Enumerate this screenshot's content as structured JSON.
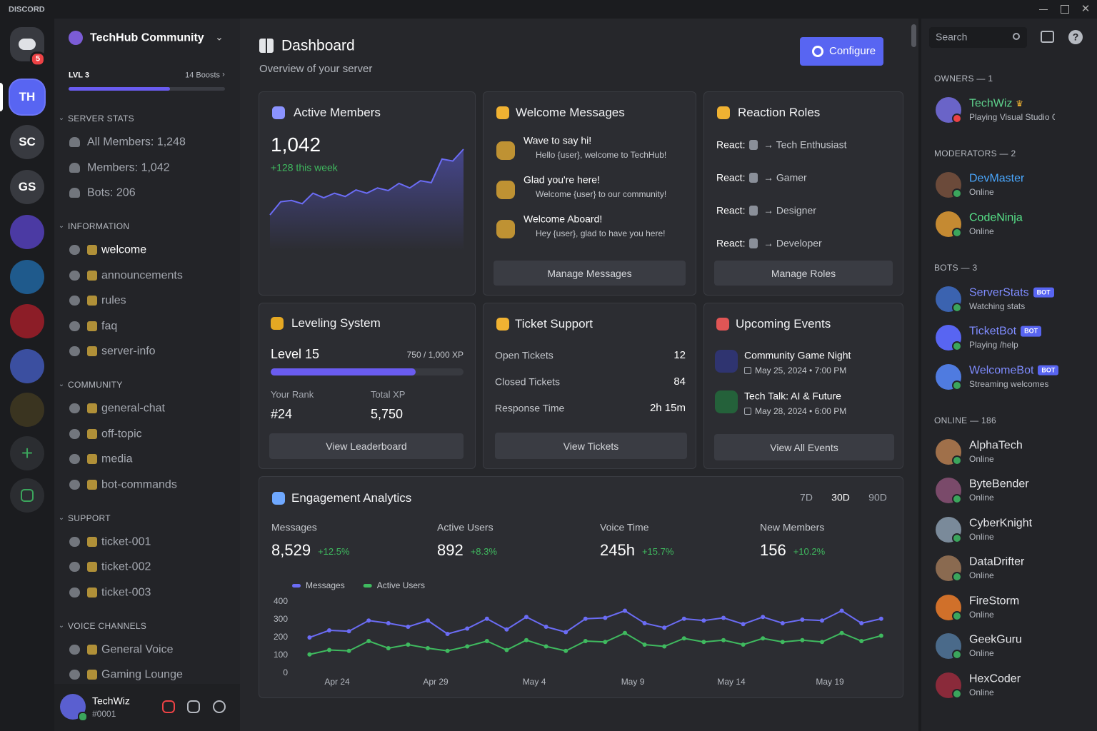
{
  "window": {
    "app": "DISCORD"
  },
  "servers": {
    "items": [
      "TH",
      "SC",
      "GS"
    ],
    "badge": "5"
  },
  "server": {
    "name": "TechHub Community",
    "level": "LVL 3",
    "boosts": "14 Boosts"
  },
  "channels": [
    {
      "name": "SERVER STATS",
      "items": [
        "All Members: 1,248",
        "Members: 1,042",
        "Bots: 206"
      ]
    },
    {
      "name": "INFORMATION",
      "items": [
        "welcome",
        "announcements",
        "rules",
        "faq",
        "server-info"
      ]
    },
    {
      "name": "COMMUNITY",
      "items": [
        "general-chat",
        "off-topic",
        "media",
        "bot-commands"
      ]
    },
    {
      "name": "SUPPORT",
      "items": [
        "ticket-001",
        "ticket-002",
        "ticket-003"
      ]
    },
    {
      "name": "VOICE CHANNELS",
      "items": [
        "General Voice",
        "Gaming Lounge"
      ]
    }
  ],
  "user": {
    "name": "TechWiz",
    "tag": "#0001"
  },
  "header": {
    "title": "Dashboard",
    "subtitle": "Overview of your server",
    "button": "Configure"
  },
  "active_members": {
    "title": "Active Members",
    "value": "1,042",
    "delta": "+128 this week",
    "trend": {
      "type": "area",
      "ylim": [
        0,
        100
      ],
      "values": [
        0,
        20,
        22,
        17,
        33,
        26,
        33,
        28,
        38,
        33,
        41,
        37,
        48,
        41,
        52,
        49,
        85,
        82,
        100
      ]
    }
  },
  "welcome": {
    "title": "Welcome Messages",
    "items": [
      {
        "title": "Wave to say hi!",
        "text": "Hello {user}, welcome to TechHub!"
      },
      {
        "title": "Glad you're here!",
        "text": "Welcome {user} to our community!"
      },
      {
        "title": "Welcome Aboard!",
        "text": "Hey {user}, glad to have you here!"
      }
    ],
    "button": "Manage Messages"
  },
  "reaction_roles": {
    "title": "Reaction Roles",
    "prefix": "React:",
    "roles": [
      "→ Tech Enthusiast",
      "→ Gamer",
      "→ Designer",
      "→ Developer"
    ],
    "button": "Manage Roles"
  },
  "leveling": {
    "title": "Leveling System",
    "level": "Level 15",
    "xp": 750,
    "xp_max": 1000,
    "xp_label": "750 / 1,000 XP",
    "rank_label": "Your Rank",
    "rank": "#24",
    "total_label": "Total XP",
    "total": "5,750",
    "button": "View Leaderboard"
  },
  "tickets": {
    "title": "Ticket Support",
    "rows": [
      {
        "label": "Open Tickets",
        "value": 12
      },
      {
        "label": "Closed Tickets",
        "value": 84
      },
      {
        "label": "Response Time",
        "value": "2h 15m"
      }
    ],
    "button": "View Tickets"
  },
  "events": {
    "title": "Upcoming Events",
    "items": [
      {
        "title": "Community Game Night",
        "date": "May 25, 2024 • 7:00 PM"
      },
      {
        "title": "Tech Talk: AI & Future",
        "date": "May 28, 2024 • 6:00 PM"
      }
    ],
    "button": "View All Events"
  },
  "analytics": {
    "title": "Engagement Analytics",
    "ranges": [
      "7D",
      "30D",
      "90D"
    ],
    "selected": "30D",
    "stats": [
      {
        "label": "Messages",
        "value": "8,529",
        "delta": "+12.5%"
      },
      {
        "label": "Active Users",
        "value": "892",
        "delta": "+8.3%"
      },
      {
        "label": "Voice Time",
        "value": "245h",
        "delta": "+15.7%"
      },
      {
        "label": "New Members",
        "value": "156",
        "delta": "+10.2%"
      }
    ],
    "chart": {
      "type": "line",
      "legend": "top-left",
      "categories": [
        null,
        "Apr 24",
        null,
        null,
        null,
        null,
        "Apr 29",
        null,
        null,
        null,
        null,
        "May 4",
        null,
        null,
        null,
        null,
        "May 9",
        null,
        null,
        null,
        null,
        "May 14",
        null,
        null,
        null,
        null,
        "May 19",
        null,
        null,
        null
      ],
      "series": [
        {
          "name": "Messages",
          "color": "#6b6cf5",
          "values": [
            200,
            240,
            235,
            295,
            280,
            260,
            295,
            220,
            250,
            305,
            245,
            315,
            260,
            230,
            305,
            310,
            350,
            280,
            255,
            305,
            295,
            310,
            275,
            315,
            280,
            300,
            295,
            350,
            280,
            305
          ]
        },
        {
          "name": "Active Users",
          "color": "#3fba5f",
          "values": [
            105,
            130,
            125,
            180,
            140,
            160,
            140,
            125,
            150,
            180,
            130,
            185,
            150,
            125,
            180,
            175,
            225,
            160,
            150,
            195,
            175,
            185,
            160,
            195,
            175,
            185,
            175,
            225,
            180,
            210
          ]
        }
      ],
      "ylim": [
        0,
        400
      ],
      "yticks": [
        0,
        100,
        200,
        300,
        400
      ]
    }
  },
  "members": {
    "search": "Search",
    "groups": [
      {
        "name": "OWNERS — 1",
        "members": [
          {
            "name": "TechWiz",
            "status": "Playing Visual Studio Code",
            "color": "#5fd38d"
          }
        ]
      },
      {
        "name": "MODERATORS — 2",
        "members": [
          {
            "name": "DevMaster",
            "status": "Online",
            "color": "#4aa8ff"
          },
          {
            "name": "CodeNinja",
            "status": "Online",
            "color": "#57e389"
          }
        ]
      },
      {
        "name": "BOTS — 3",
        "members": [
          {
            "name": "ServerStats",
            "badge": "BOT",
            "status": "Watching stats",
            "color": "#7f8cff"
          },
          {
            "name": "TicketBot",
            "badge": "BOT",
            "status": "Playing /help",
            "color": "#7f8cff"
          },
          {
            "name": "WelcomeBot",
            "badge": "BOT",
            "status": "Streaming welcomes",
            "color": "#7f8cff"
          }
        ]
      },
      {
        "name": "ONLINE — 186",
        "members": [
          {
            "name": "AlphaTech",
            "status": "Online",
            "color": "#e6e7ea"
          },
          {
            "name": "ByteBender",
            "status": "Online",
            "color": "#e6e7ea"
          },
          {
            "name": "CyberKnight",
            "status": "Online",
            "color": "#e6e7ea"
          },
          {
            "name": "DataDrifter",
            "status": "Online",
            "color": "#e6e7ea"
          },
          {
            "name": "FireStorm",
            "status": "Online",
            "color": "#e6e7ea"
          },
          {
            "name": "GeekGuru",
            "status": "Online",
            "color": "#e6e7ea"
          },
          {
            "name": "HexCoder",
            "status": "Online",
            "color": "#e6e7ea"
          }
        ]
      }
    ]
  }
}
